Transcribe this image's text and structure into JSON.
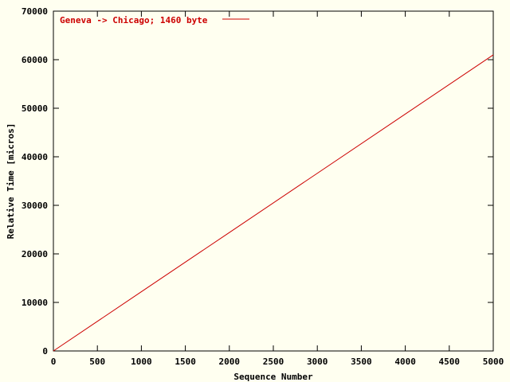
{
  "chart_data": {
    "type": "line",
    "title": "",
    "xlabel": "Sequence Number",
    "ylabel": "Relative Time [micros]",
    "xlim": [
      0,
      5000
    ],
    "ylim": [
      0,
      70000
    ],
    "x_ticks": [
      "0",
      "500",
      "1000",
      "1500",
      "2000",
      "2500",
      "3000",
      "3500",
      "4000",
      "4500",
      "5000"
    ],
    "y_ticks": [
      "0",
      "10000",
      "20000",
      "30000",
      "40000",
      "50000",
      "60000",
      "70000"
    ],
    "grid": false,
    "legend_position": "top-left",
    "colors": {
      "background": "#fffff0",
      "series": "#cc0000",
      "axes": "#000000"
    },
    "series": [
      {
        "name": "Geneva -> Chicago; 1460 byte",
        "x": [
          0,
          1000,
          2000,
          3000,
          4000,
          5000
        ],
        "y": [
          0,
          12200,
          24400,
          36600,
          48800,
          61000
        ]
      }
    ]
  }
}
